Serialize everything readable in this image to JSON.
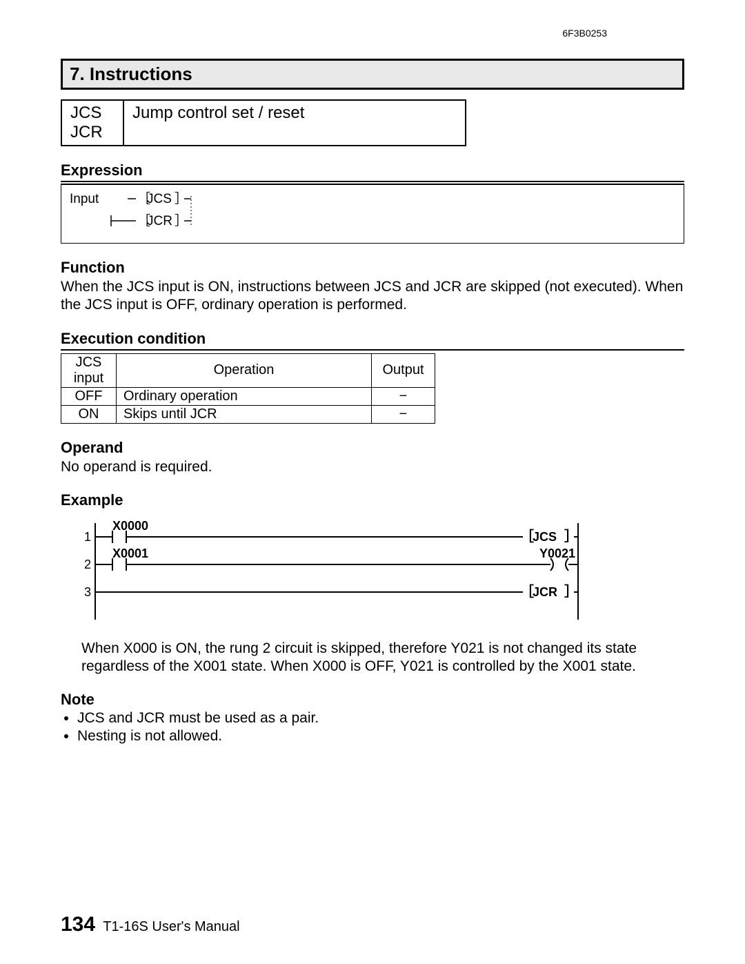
{
  "doc_id": "6F3B0253",
  "section_header": "7. Instructions",
  "instruction_box": {
    "codes": [
      "JCS",
      "JCR"
    ],
    "title": "Jump control set / reset"
  },
  "expression": {
    "heading": "Expression",
    "input_label": "Input",
    "jcs": "JCS",
    "jcr": "JCR"
  },
  "function": {
    "heading": "Function",
    "text": "When the JCS input is ON, instructions between JCS and JCR are skipped (not executed). When the JCS input is OFF, ordinary operation is performed."
  },
  "exec_cond": {
    "heading": "Execution condition",
    "headers": {
      "col1a": "JCS",
      "col1b": "input",
      "col2": "Operation",
      "col3": "Output"
    },
    "rows": [
      {
        "input": "OFF",
        "op": "Ordinary operation",
        "out": "−"
      },
      {
        "input": "ON",
        "op": "Skips until JCR",
        "out": "−"
      }
    ]
  },
  "operand": {
    "heading": "Operand",
    "text": "No operand is required."
  },
  "example": {
    "heading": "Example",
    "diagram": {
      "type": "ladder",
      "rail_color": "#000000",
      "line_width": 2,
      "contact_font": "monospace",
      "contact_fontsize": 18,
      "rung_num_fontsize": 18,
      "rungs": [
        {
          "n": "1",
          "contact": "X0000",
          "output_type": "box",
          "output_label": "JCS"
        },
        {
          "n": "2",
          "contact": "X0001",
          "output_type": "coil",
          "output_label": "Y0021"
        },
        {
          "n": "3",
          "contact": null,
          "output_type": "box",
          "output_label": "JCR"
        }
      ]
    },
    "explain": "When X000 is ON, the rung 2 circuit is skipped, therefore Y021 is not changed its state regardless of the X001 state. When X000 is OFF, Y021 is controlled by the X001 state."
  },
  "note": {
    "heading": "Note",
    "items": [
      "JCS and JCR must be used as a pair.",
      "Nesting is not allowed."
    ]
  },
  "footer": {
    "page": "134",
    "manual": "T1-16S User's Manual"
  }
}
